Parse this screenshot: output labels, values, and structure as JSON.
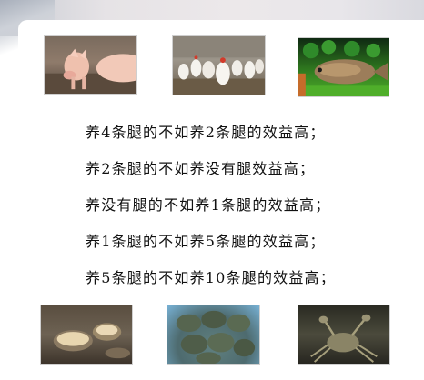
{
  "sentences": [
    "养4条腿的不如养2条腿的效益高；",
    "养2条腿的不如养没有腿效益高；",
    "养没有腿的不如养1条腿的效益高；",
    "养1条腿的不如养5条腿的效益高；",
    "养5条腿的不如养10条腿的效益高；"
  ],
  "photos": [
    {
      "subject": "pigs"
    },
    {
      "subject": "chickens"
    },
    {
      "subject": "fish"
    },
    {
      "subject": "clams"
    },
    {
      "subject": "turtles"
    },
    {
      "subject": "crab"
    }
  ]
}
